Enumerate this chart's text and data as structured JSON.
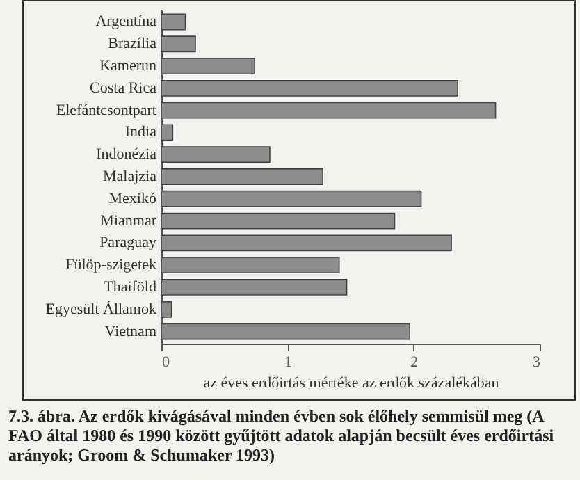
{
  "chart_data": {
    "type": "bar",
    "orientation": "horizontal",
    "categories": [
      "Argentína",
      "Brazília",
      "Kamerun",
      "Costa Rica",
      "Elefántcsontpart",
      "India",
      "Indonézia",
      "Malajzia",
      "Mexikó",
      "Mianmar",
      "Paraguay",
      "Fülöp-szigetek",
      "Thaiföld",
      "Egyesült Államok",
      "Vietnam"
    ],
    "values": [
      0.19,
      0.27,
      0.74,
      2.35,
      2.65,
      0.09,
      0.86,
      1.28,
      2.06,
      1.85,
      2.3,
      1.41,
      1.47,
      0.08,
      1.97
    ],
    "color": "#8c8c8c",
    "xlim": [
      0,
      3
    ],
    "xticks": [
      0,
      1,
      2,
      3
    ],
    "xlabel": "az éves erdőirtás mértéke az erdők százalékában",
    "grid": false,
    "annotations": [
      "7.3. ábra. Az erdők kivágásával minden évben sok élőhely semmisül meg (A FAO által 1980 és 1990 között gyűjtött adatok alapján becsült éves erdőirtási arányok; Groom & Schumaker 1993)"
    ]
  }
}
